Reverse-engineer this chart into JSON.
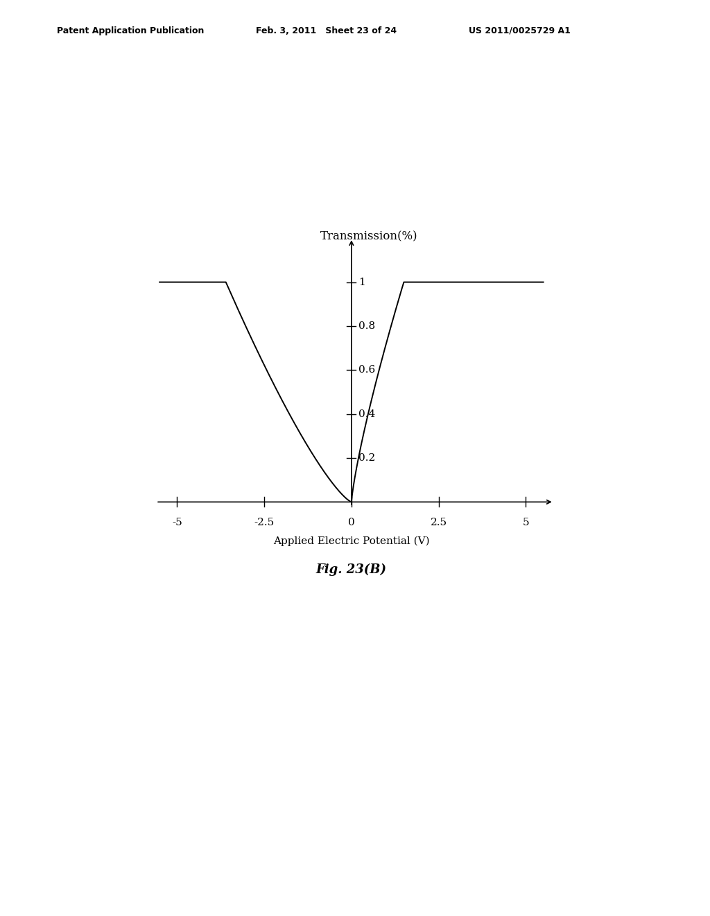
{
  "title": "Transmission(%)",
  "xlabel": "Applied Electric Potential (V)",
  "figure_label": "Fig. 23(B)",
  "header_left": "Patent Application Publication",
  "header_center": "Feb. 3, 2011   Sheet 23 of 24",
  "header_right": "US 2011/0025729 A1",
  "xlim": [
    -5.8,
    5.8
  ],
  "ylim": [
    -0.05,
    1.2
  ],
  "yticks": [
    0.2,
    0.4,
    0.6,
    0.8,
    1.0
  ],
  "xticks": [
    -5,
    -2.5,
    0,
    2.5,
    5
  ],
  "xtick_labels": [
    "-5",
    "-2.5",
    "0",
    "2.5",
    "5"
  ],
  "ytick_labels": [
    "0.2",
    "0.4",
    "0.6",
    "0.8",
    "1"
  ],
  "curve_color": "#000000",
  "background_color": "#ffffff",
  "linewidth": 1.4,
  "font_size_title": 12,
  "font_size_axis": 11,
  "font_size_ticks": 11,
  "font_size_header": 9,
  "font_size_fig_label": 13
}
